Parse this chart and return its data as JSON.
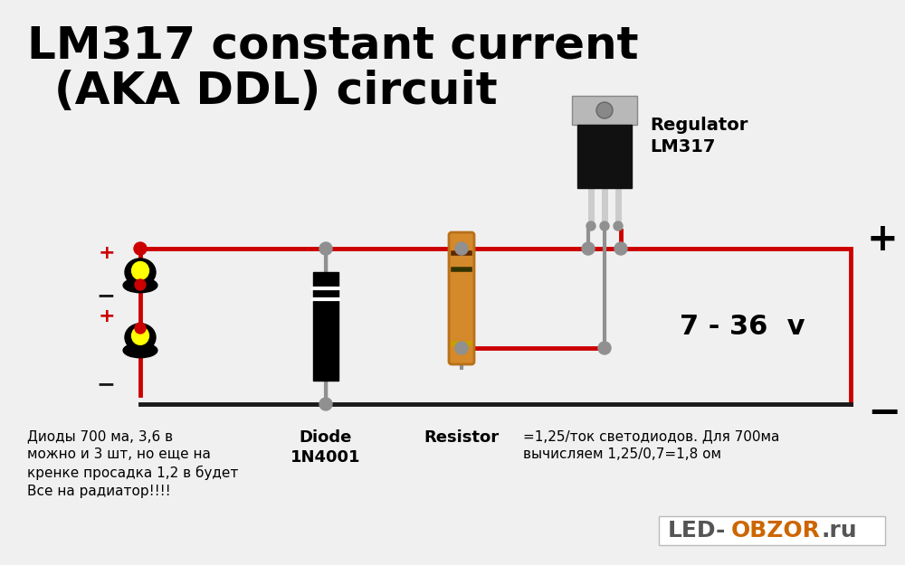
{
  "title_line1": "LM317 constant current",
  "title_line2": "(AKA DDL) circuit",
  "title_fontsize": 36,
  "bg_color": "#f0f0f0",
  "wire_red": "#cc0000",
  "wire_black": "#1a1a1a",
  "wire_gray": "#909090",
  "node_gray": "#909090",
  "node_red": "#cc0000",
  "regulator_label1": "Regulator",
  "regulator_label2": "LM317",
  "diode_label1": "Diode",
  "diode_label2": "1N4001",
  "resistor_label": "Resistor",
  "formula_text": "=1,25/ток светодиодов. Для 700ма\nвычисляем 1,25/0,7=1,8 ом",
  "bottom_text": "Диоды 700 ма, 3,6 в\nможно и 3 шт, но еще на\nкренке просадка 1,2 в будет\nВсе на радиатор!!!!",
  "voltage_text": "7 - 36  v",
  "led_obzor_color": "#cc6600"
}
